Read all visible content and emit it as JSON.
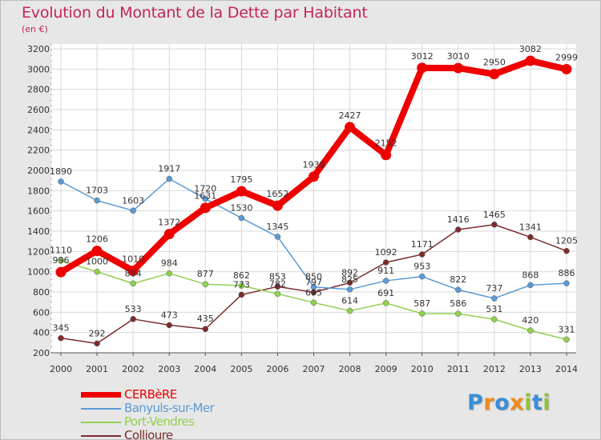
{
  "chart_data": {
    "type": "line",
    "title": "Evolution du Montant de la Dette par Habitant",
    "subtitle": "(en €)",
    "x": [
      2000,
      2001,
      2002,
      2003,
      2004,
      2005,
      2006,
      2007,
      2008,
      2009,
      2010,
      2011,
      2012,
      2013,
      2014
    ],
    "ylim": [
      200,
      3200
    ],
    "yticks": [
      200,
      400,
      600,
      800,
      1000,
      1200,
      1400,
      1600,
      1800,
      2000,
      2200,
      2400,
      2600,
      2800,
      3000,
      3200
    ],
    "grid": true,
    "legend_position": "bottom-left",
    "series": [
      {
        "name": "CERBèRE",
        "color": "#ee0000",
        "values": [
          996,
          1206,
          1010,
          1372,
          1631,
          1795,
          1652,
          1939,
          2427,
          2152,
          3012,
          3010,
          2950,
          3082,
          2999
        ]
      },
      {
        "name": "Banyuls-sur-Mer",
        "color": "#5b9bd5",
        "values": [
          1890,
          1703,
          1603,
          1917,
          1720,
          1530,
          1345,
          850,
          825,
          911,
          953,
          822,
          737,
          868,
          886
        ]
      },
      {
        "name": "Port-Vendres",
        "color": "#92d050",
        "values": [
          1110,
          1000,
          884,
          984,
          877,
          862,
          782,
          695,
          614,
          691,
          587,
          586,
          531,
          420,
          331
        ]
      },
      {
        "name": "Collioure",
        "color": "#7b2c2c",
        "values": [
          345,
          292,
          533,
          473,
          435,
          773,
          853,
          797,
          892,
          1092,
          1171,
          1416,
          1465,
          1341,
          1205
        ]
      }
    ]
  },
  "legend": {
    "items": [
      "CERBèRE",
      "Banyuls-sur-Mer",
      "Port-Vendres",
      "Collioure"
    ]
  },
  "brand": {
    "letters": [
      "P",
      "r",
      "o",
      "x",
      "i",
      "t",
      "i"
    ],
    "colors": [
      "#3a8ed6",
      "#f08a1c",
      "#3a8ed6",
      "#f08a1c",
      "#92c23c",
      "#3a8ed6",
      "#92c23c"
    ]
  }
}
